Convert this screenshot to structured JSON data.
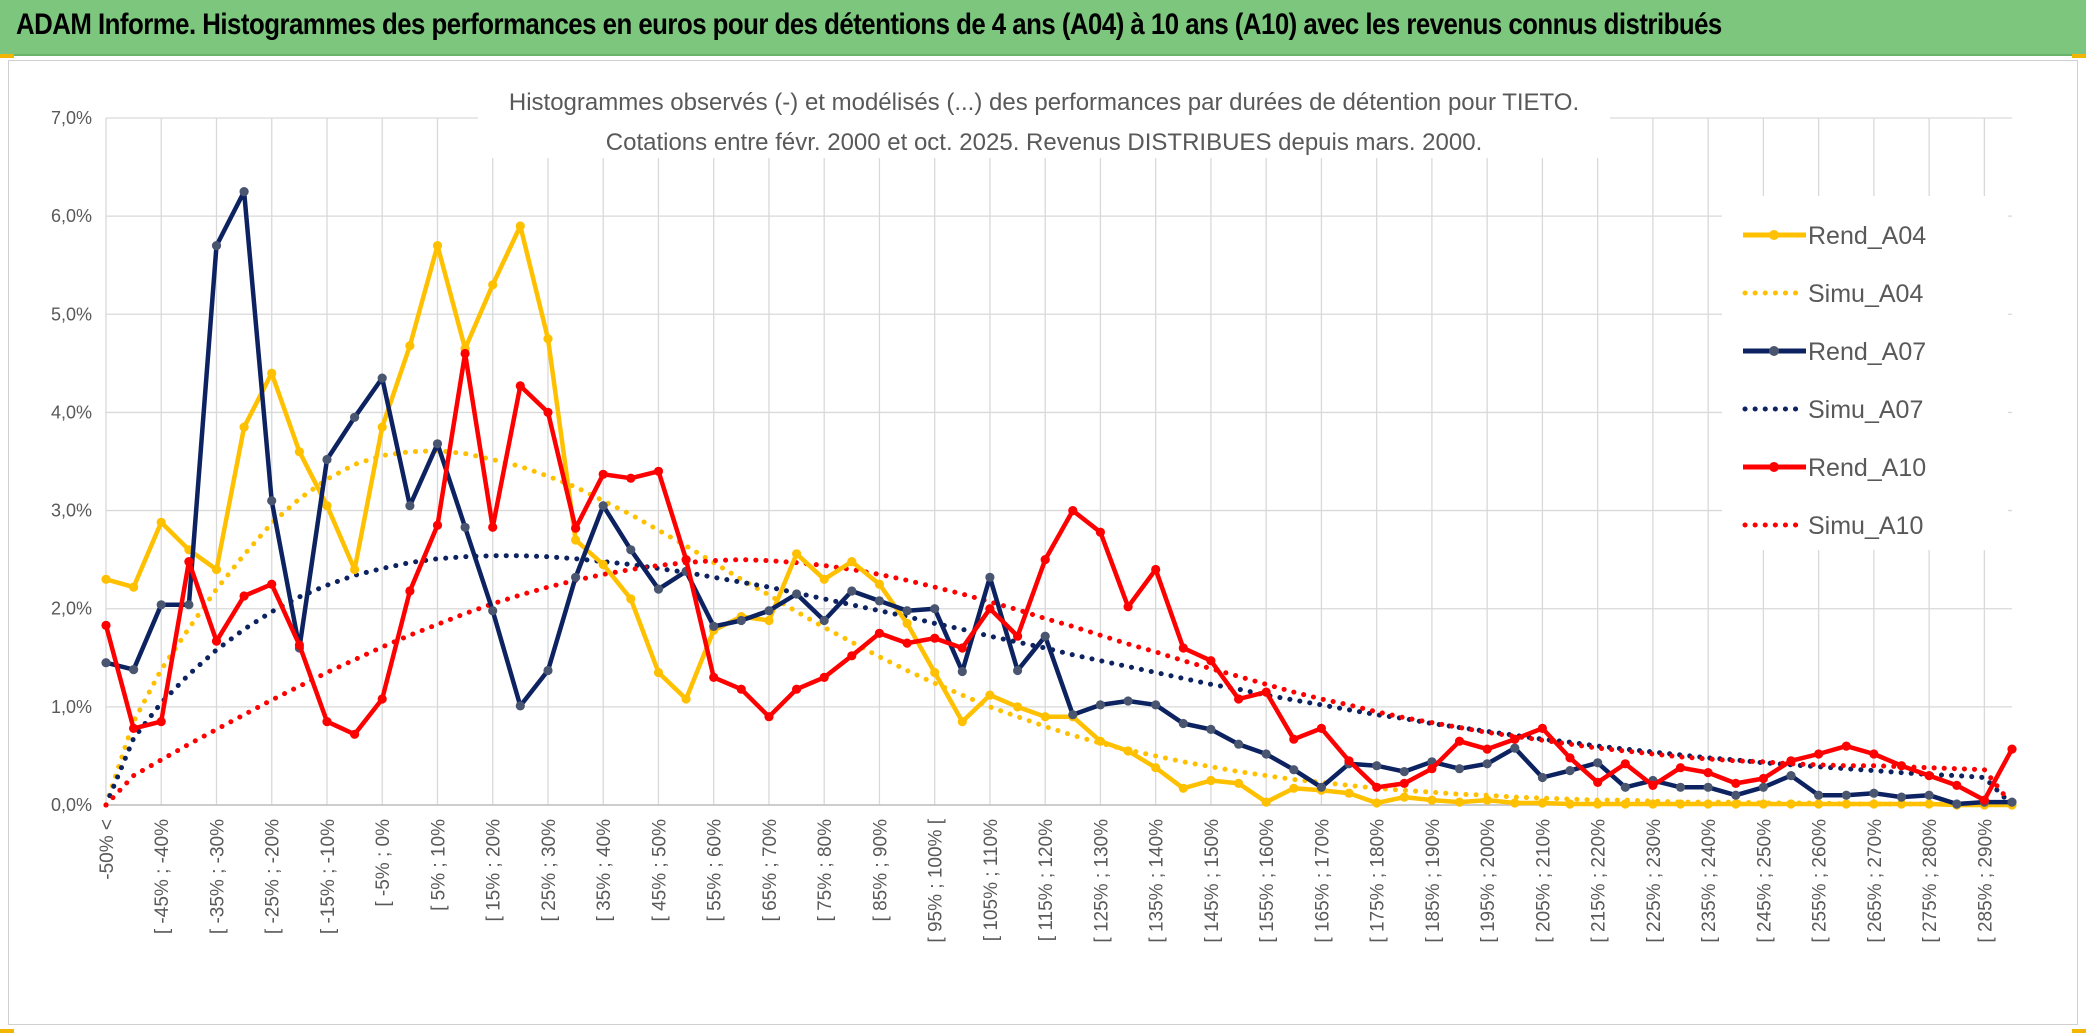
{
  "header": {
    "title": "ADAM Informe. Histogrammes des performances en euros pour des détentions de 4 ans (A04) à 10 ans (A10) avec les revenus connus distribués"
  },
  "colors": {
    "banner": "#7dc67e",
    "gold": "#ffc000",
    "navy": "#0d2260",
    "red": "#ff0000",
    "grid": "#d9d9d9",
    "text": "#595959"
  },
  "chart_data": {
    "type": "line",
    "title": "Histogrammes observés (-) et modélisés (...) des performances par durées de détention pour TIETO.",
    "subtitle": "Cotations entre févr. 2000 et oct. 2025. Revenus DISTRIBUES depuis mars. 2000.",
    "ylim": [
      0,
      7
    ],
    "y_ticks": [
      "0,0%",
      "1,0%",
      "2,0%",
      "3,0%",
      "4,0%",
      "5,0%",
      "6,0%",
      "7,0%"
    ],
    "x_count": 70,
    "x_tick_labels": [
      {
        "i": 0,
        "label": "-50% <"
      },
      {
        "i": 2,
        "label": "[ -45% ; -40%"
      },
      {
        "i": 4,
        "label": "[ -35% ; -30%"
      },
      {
        "i": 6,
        "label": "[ -25% ; -20%"
      },
      {
        "i": 8,
        "label": "[ -15% ; -10%"
      },
      {
        "i": 10,
        "label": "[ -5% ; 0%"
      },
      {
        "i": 12,
        "label": "[ 5% ; 10%"
      },
      {
        "i": 14,
        "label": "[ 15% ; 20%"
      },
      {
        "i": 16,
        "label": "[ 25% ; 30%"
      },
      {
        "i": 18,
        "label": "[ 35% ; 40%"
      },
      {
        "i": 20,
        "label": "[ 45% ; 50%"
      },
      {
        "i": 22,
        "label": "[ 55% ; 60%"
      },
      {
        "i": 24,
        "label": "[ 65% ; 70%"
      },
      {
        "i": 26,
        "label": "[ 75% ; 80%"
      },
      {
        "i": 28,
        "label": "[ 85% ; 90%"
      },
      {
        "i": 30,
        "label": "[ 95% ; 100% ["
      },
      {
        "i": 32,
        "label": "[ 105% ; 110%"
      },
      {
        "i": 34,
        "label": "[ 115% ; 120%"
      },
      {
        "i": 36,
        "label": "[ 125% ; 130%"
      },
      {
        "i": 38,
        "label": "[ 135% ; 140%"
      },
      {
        "i": 40,
        "label": "[ 145% ; 150%"
      },
      {
        "i": 42,
        "label": "[ 155% ; 160%"
      },
      {
        "i": 44,
        "label": "[ 165% ; 170%"
      },
      {
        "i": 46,
        "label": "[ 175% ; 180%"
      },
      {
        "i": 48,
        "label": "[ 185% ; 190%"
      },
      {
        "i": 50,
        "label": "[ 195% ; 200%"
      },
      {
        "i": 52,
        "label": "[ 205% ; 210%"
      },
      {
        "i": 54,
        "label": "[ 215% ; 220%"
      },
      {
        "i": 56,
        "label": "[ 225% ; 230%"
      },
      {
        "i": 58,
        "label": "[ 235% ; 240%"
      },
      {
        "i": 60,
        "label": "[ 245% ; 250%"
      },
      {
        "i": 62,
        "label": "[ 255% ; 260%"
      },
      {
        "i": 64,
        "label": "[ 265% ; 270%"
      },
      {
        "i": 66,
        "label": "[ 275% ; 280%"
      },
      {
        "i": 68,
        "label": "[ 285% ; 290%"
      }
    ],
    "legend_position": "right",
    "grid": true,
    "series": [
      {
        "name": "Rend_A04",
        "style": "solid",
        "color": "#ffc000",
        "values": [
          2.3,
          2.22,
          2.88,
          2.6,
          2.4,
          3.85,
          4.4,
          3.6,
          3.05,
          2.4,
          3.85,
          4.68,
          5.7,
          4.65,
          5.3,
          5.9,
          4.75,
          2.7,
          2.45,
          2.1,
          1.35,
          1.08,
          1.78,
          1.92,
          1.88,
          2.56,
          2.3,
          2.48,
          2.25,
          1.85,
          1.35,
          0.85,
          1.12,
          1.0,
          0.9,
          0.9,
          0.65,
          0.55,
          0.38,
          0.17,
          0.25,
          0.22,
          0.03,
          0.17,
          0.15,
          0.12,
          0.02,
          0.08,
          0.05,
          0.03,
          0.05,
          0.02,
          0.02,
          0.01,
          0.01,
          0.01,
          0.01,
          0.01,
          0.01,
          0.01,
          0.01,
          0.01,
          0.01,
          0.01,
          0.01,
          0.01,
          0.01,
          0.0,
          0.0,
          0.0
        ]
      },
      {
        "name": "Simu_A04",
        "style": "dotted",
        "color": "#ffc000",
        "values": [
          0.0,
          0.85,
          1.38,
          1.8,
          2.2,
          2.55,
          2.87,
          3.12,
          3.32,
          3.47,
          3.56,
          3.6,
          3.61,
          3.58,
          3.52,
          3.45,
          3.35,
          3.24,
          3.1,
          2.96,
          2.8,
          2.64,
          2.47,
          2.3,
          2.14,
          1.97,
          1.81,
          1.66,
          1.51,
          1.37,
          1.24,
          1.12,
          1.0,
          0.9,
          0.8,
          0.71,
          0.63,
          0.56,
          0.5,
          0.44,
          0.39,
          0.34,
          0.3,
          0.26,
          0.23,
          0.2,
          0.17,
          0.15,
          0.13,
          0.11,
          0.1,
          0.08,
          0.07,
          0.06,
          0.05,
          0.05,
          0.04,
          0.03,
          0.03,
          0.03,
          0.02,
          0.02,
          0.02,
          0.01,
          0.01,
          0.01,
          0.01,
          0.01,
          0.01,
          0.0
        ]
      },
      {
        "name": "Rend_A07",
        "style": "solid",
        "color": "#0d2260",
        "values": [
          1.45,
          1.38,
          2.04,
          2.04,
          5.7,
          6.25,
          3.1,
          1.6,
          3.52,
          3.95,
          4.35,
          3.05,
          3.68,
          2.83,
          1.98,
          1.01,
          1.37,
          2.32,
          3.05,
          2.6,
          2.2,
          2.38,
          1.82,
          1.88,
          1.98,
          2.15,
          1.88,
          2.18,
          2.08,
          1.98,
          2.0,
          1.36,
          2.32,
          1.37,
          1.72,
          0.92,
          1.02,
          1.06,
          1.02,
          0.83,
          0.77,
          0.62,
          0.52,
          0.36,
          0.18,
          0.42,
          0.4,
          0.34,
          0.44,
          0.37,
          0.42,
          0.58,
          0.28,
          0.35,
          0.43,
          0.18,
          0.25,
          0.18,
          0.18,
          0.1,
          0.18,
          0.3,
          0.1,
          0.1,
          0.12,
          0.08,
          0.1,
          0.01,
          0.03,
          0.03
        ]
      },
      {
        "name": "Simu_A07",
        "style": "dotted",
        "color": "#0d2260",
        "values": [
          0.0,
          0.68,
          1.04,
          1.33,
          1.58,
          1.79,
          1.97,
          2.12,
          2.24,
          2.34,
          2.41,
          2.47,
          2.51,
          2.53,
          2.54,
          2.54,
          2.53,
          2.51,
          2.48,
          2.45,
          2.41,
          2.37,
          2.32,
          2.27,
          2.22,
          2.16,
          2.1,
          2.04,
          1.98,
          1.92,
          1.85,
          1.79,
          1.72,
          1.66,
          1.6,
          1.53,
          1.47,
          1.41,
          1.35,
          1.29,
          1.23,
          1.18,
          1.12,
          1.07,
          1.02,
          0.97,
          0.92,
          0.88,
          0.83,
          0.79,
          0.75,
          0.71,
          0.67,
          0.64,
          0.6,
          0.57,
          0.54,
          0.51,
          0.48,
          0.46,
          0.43,
          0.41,
          0.39,
          0.37,
          0.35,
          0.33,
          0.31,
          0.3,
          0.28,
          0.0
        ]
      },
      {
        "name": "Rend_A10",
        "style": "solid",
        "color": "#ff0000",
        "values": [
          1.83,
          0.78,
          0.85,
          2.48,
          1.67,
          2.13,
          2.25,
          1.63,
          0.85,
          0.72,
          1.08,
          2.18,
          2.85,
          4.6,
          2.83,
          4.27,
          4.0,
          2.82,
          3.37,
          3.33,
          3.4,
          2.5,
          1.3,
          1.18,
          0.9,
          1.18,
          1.3,
          1.52,
          1.75,
          1.65,
          1.7,
          1.6,
          2.0,
          1.72,
          2.5,
          3.0,
          2.78,
          2.02,
          2.4,
          1.6,
          1.47,
          1.08,
          1.15,
          0.67,
          0.78,
          0.45,
          0.18,
          0.22,
          0.37,
          0.65,
          0.57,
          0.67,
          0.78,
          0.48,
          0.23,
          0.42,
          0.2,
          0.38,
          0.33,
          0.22,
          0.27,
          0.45,
          0.52,
          0.6,
          0.52,
          0.4,
          0.3,
          0.2,
          0.05,
          0.57
        ]
      },
      {
        "name": "Simu_A10",
        "style": "dotted",
        "color": "#ff0000",
        "values": [
          0.0,
          0.3,
          0.46,
          0.62,
          0.77,
          0.92,
          1.07,
          1.21,
          1.35,
          1.48,
          1.61,
          1.73,
          1.84,
          1.95,
          2.05,
          2.14,
          2.22,
          2.29,
          2.35,
          2.4,
          2.44,
          2.47,
          2.49,
          2.5,
          2.49,
          2.47,
          2.44,
          2.4,
          2.35,
          2.29,
          2.22,
          2.15,
          2.07,
          1.99,
          1.9,
          1.82,
          1.73,
          1.64,
          1.56,
          1.47,
          1.39,
          1.31,
          1.23,
          1.15,
          1.08,
          1.02,
          0.95,
          0.89,
          0.84,
          0.79,
          0.74,
          0.7,
          0.66,
          0.62,
          0.58,
          0.55,
          0.52,
          0.49,
          0.47,
          0.45,
          0.44,
          0.42,
          0.41,
          0.4,
          0.4,
          0.39,
          0.38,
          0.37,
          0.36,
          0.0
        ]
      }
    ]
  }
}
